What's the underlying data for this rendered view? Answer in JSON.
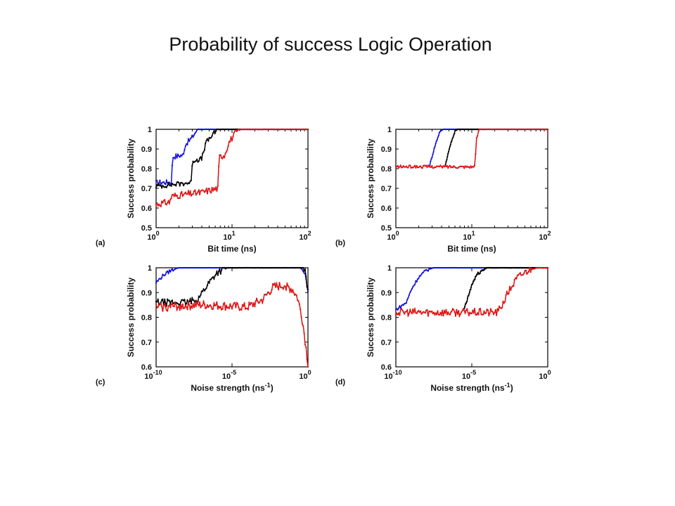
{
  "slide": {
    "title": "Probability of success Logic Operation"
  },
  "colors": {
    "series1": "#1010e0",
    "series2": "#000000",
    "series3": "#e01010"
  },
  "chart_data": [
    {
      "panel_label": "(a)",
      "type": "line",
      "xscale": "log",
      "xlabel": "Bit time (ns)",
      "ylabel": "Success probability",
      "xlim": [
        1,
        100
      ],
      "ylim": [
        0.5,
        1
      ],
      "xticks": [
        {
          "b": "10",
          "e": "0",
          "v": 1
        },
        {
          "b": "10",
          "e": "1",
          "v": 10
        },
        {
          "b": "10",
          "e": "2",
          "v": 100
        }
      ],
      "yticks": [
        "0.5",
        "0.6",
        "0.7",
        "0.8",
        "0.9",
        "1"
      ],
      "series": [
        {
          "color": "series1",
          "noise": 0.012,
          "points": [
            [
              1,
              0.73
            ],
            [
              1.6,
              0.73
            ],
            [
              1.65,
              0.86
            ],
            [
              2.3,
              0.87
            ],
            [
              2.4,
              0.92
            ],
            [
              3.0,
              0.96
            ],
            [
              3.5,
              1.0
            ],
            [
              100,
              1.0
            ]
          ]
        },
        {
          "color": "series2",
          "noise": 0.012,
          "points": [
            [
              1,
              0.71
            ],
            [
              2.9,
              0.73
            ],
            [
              3.0,
              0.84
            ],
            [
              4.0,
              0.85
            ],
            [
              4.5,
              0.93
            ],
            [
              5.5,
              0.97
            ],
            [
              6.5,
              1.0
            ],
            [
              100,
              1.0
            ]
          ]
        },
        {
          "color": "series3",
          "noise": 0.016,
          "points": [
            [
              1,
              0.62
            ],
            [
              1.5,
              0.63
            ],
            [
              1.6,
              0.66
            ],
            [
              4.0,
              0.68
            ],
            [
              6.5,
              0.7
            ],
            [
              6.8,
              0.86
            ],
            [
              8.0,
              0.87
            ],
            [
              9.0,
              0.93
            ],
            [
              11,
              0.98
            ],
            [
              13,
              1.0
            ],
            [
              100,
              1.0
            ]
          ]
        }
      ]
    },
    {
      "panel_label": "(b)",
      "type": "line",
      "xscale": "log",
      "xlabel": "Bit time (ns)",
      "ylabel": "Success probability",
      "xlim": [
        1,
        100
      ],
      "ylim": [
        0.5,
        1
      ],
      "xticks": [
        {
          "b": "10",
          "e": "0",
          "v": 1
        },
        {
          "b": "10",
          "e": "1",
          "v": 10
        },
        {
          "b": "10",
          "e": "2",
          "v": 100
        }
      ],
      "yticks": [
        "0.5",
        "0.6",
        "0.7",
        "0.8",
        "0.9",
        "1"
      ],
      "series": [
        {
          "color": "series1",
          "noise": 0.004,
          "points": [
            [
              2.8,
              0.82
            ],
            [
              3.3,
              0.92
            ],
            [
              3.8,
              0.99
            ],
            [
              4.2,
              1.0
            ],
            [
              100,
              1.0
            ]
          ]
        },
        {
          "color": "series2",
          "noise": 0.004,
          "points": [
            [
              4.5,
              0.82
            ],
            [
              5.2,
              0.92
            ],
            [
              6.0,
              0.99
            ],
            [
              6.5,
              1.0
            ],
            [
              100,
              1.0
            ]
          ]
        },
        {
          "color": "series3",
          "noise": 0.007,
          "points": [
            [
              1,
              0.81
            ],
            [
              11,
              0.81
            ],
            [
              11.5,
              0.95
            ],
            [
              12.5,
              1.0
            ],
            [
              100,
              1.0
            ]
          ]
        }
      ]
    },
    {
      "panel_label": "(c)",
      "type": "line",
      "xscale": "log",
      "xlabel": "Noise strength (ns-1)",
      "ylabel": "Success probability",
      "xlim": [
        1e-10,
        1
      ],
      "ylim": [
        0.6,
        1
      ],
      "xticks": [
        {
          "b": "10",
          "e": "-10",
          "v": 1e-10
        },
        {
          "b": "10",
          "e": "-5",
          "v": 1e-05
        },
        {
          "b": "10",
          "e": "0",
          "v": 1
        }
      ],
      "yticks": [
        "0.6",
        "0.7",
        "0.8",
        "0.9",
        "1"
      ],
      "series": [
        {
          "color": "series1",
          "noise": 0.006,
          "points": [
            [
              1e-10,
              0.94
            ],
            [
              3e-10,
              0.97
            ],
            [
              1e-09,
              0.99
            ],
            [
              3e-09,
              1.0
            ],
            [
              0.3,
              1.0
            ],
            [
              0.5,
              0.99
            ],
            [
              0.7,
              0.97
            ],
            [
              1,
              0.9
            ]
          ]
        },
        {
          "color": "series2",
          "noise": 0.013,
          "points": [
            [
              1e-10,
              0.86
            ],
            [
              1e-08,
              0.86
            ],
            [
              5e-08,
              0.87
            ],
            [
              3e-07,
              0.94
            ],
            [
              1e-06,
              0.98
            ],
            [
              5e-06,
              1.0
            ],
            [
              0.5,
              1.0
            ],
            [
              0.7,
              0.98
            ],
            [
              1,
              0.9
            ]
          ]
        },
        {
          "color": "series3",
          "noise": 0.017,
          "points": [
            [
              1e-10,
              0.84
            ],
            [
              1e-07,
              0.85
            ],
            [
              0.0001,
              0.84
            ],
            [
              0.001,
              0.87
            ],
            [
              0.005,
              0.92
            ],
            [
              0.03,
              0.93
            ],
            [
              0.1,
              0.91
            ],
            [
              0.2,
              0.88
            ],
            [
              0.35,
              0.82
            ],
            [
              0.5,
              0.76
            ],
            [
              0.7,
              0.69
            ],
            [
              1,
              0.61
            ]
          ]
        }
      ]
    },
    {
      "panel_label": "(d)",
      "type": "line",
      "xscale": "log",
      "xlabel": "Noise strength (ns-1)",
      "ylabel": "Success probability",
      "xlim": [
        1e-10,
        1
      ],
      "ylim": [
        0.6,
        1
      ],
      "xticks": [
        {
          "b": "10",
          "e": "-10",
          "v": 1e-10
        },
        {
          "b": "10",
          "e": "-5",
          "v": 1e-05
        },
        {
          "b": "10",
          "e": "0",
          "v": 1
        }
      ],
      "yticks": [
        "0.6",
        "0.7",
        "0.8",
        "0.9",
        "1"
      ],
      "series": [
        {
          "color": "series1",
          "noise": 0.006,
          "points": [
            [
              1e-10,
              0.83
            ],
            [
              5e-10,
              0.86
            ],
            [
              1e-09,
              0.91
            ],
            [
              3e-09,
              0.96
            ],
            [
              1e-08,
              0.99
            ],
            [
              3e-08,
              1.0
            ],
            [
              1,
              1.0
            ]
          ]
        },
        {
          "color": "series2",
          "noise": 0.006,
          "points": [
            [
              3e-06,
              0.83
            ],
            [
              5e-06,
              0.87
            ],
            [
              1e-05,
              0.93
            ],
            [
              2e-05,
              0.97
            ],
            [
              5e-05,
              0.99
            ],
            [
              0.0001,
              1.0
            ],
            [
              1,
              1.0
            ]
          ]
        },
        {
          "color": "series3",
          "noise": 0.015,
          "points": [
            [
              1e-10,
              0.82
            ],
            [
              0.0001,
              0.82
            ],
            [
              0.0005,
              0.82
            ],
            [
              0.001,
              0.85
            ],
            [
              0.003,
              0.91
            ],
            [
              0.01,
              0.96
            ],
            [
              0.05,
              0.99
            ],
            [
              0.2,
              1.0
            ],
            [
              1,
              1.0
            ]
          ]
        }
      ]
    }
  ]
}
